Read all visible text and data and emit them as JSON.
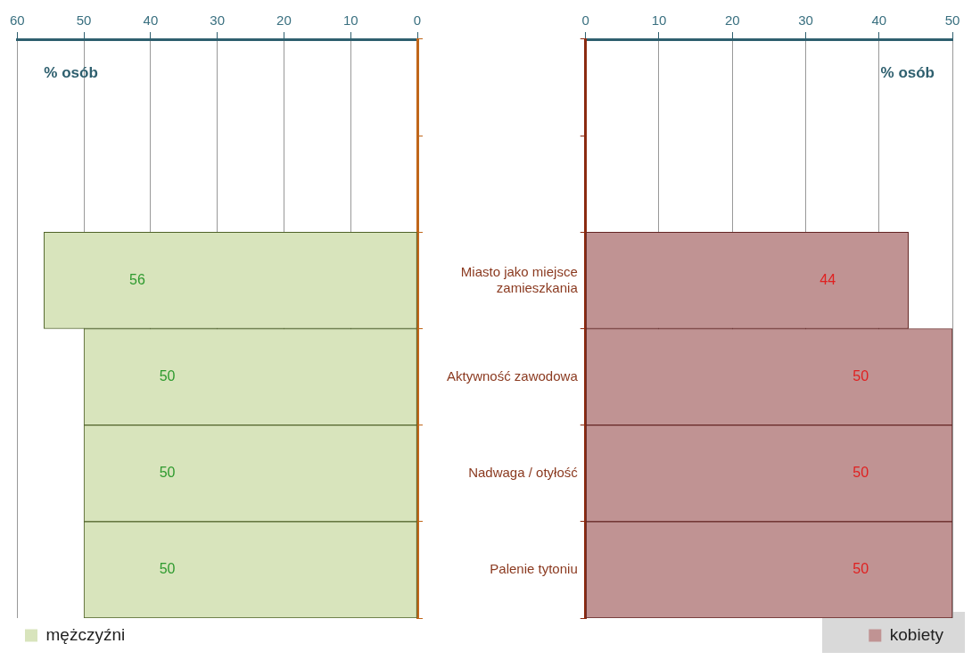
{
  "chart_data": [
    {
      "type": "bar",
      "orientation": "horizontal",
      "xlabel": "% osób",
      "categories": [
        null,
        null,
        null,
        null,
        null,
        null
      ],
      "xlim": [
        60,
        0
      ],
      "xticks": [
        60,
        50,
        40,
        30,
        20,
        10,
        0
      ],
      "grid": "x",
      "tick_labels": "x",
      "legend": "bottom left",
      "data_labels": true,
      "series": [
        {
          "name": "mężczyźni",
          "color": "#d8e4bc",
          "values": [
            null,
            null,
            56,
            50,
            50,
            50
          ]
        }
      ]
    },
    {
      "type": "bar",
      "orientation": "horizontal",
      "xlabel": "% osób",
      "categories": [
        null,
        null,
        "Miasto jako miejsce zamieszkania",
        "Aktywność zawodowa",
        "Nadwaga / otyłość",
        "Palenie tytoniu"
      ],
      "xlim": [
        0,
        50
      ],
      "xticks": [
        0,
        10,
        20,
        30,
        40,
        50
      ],
      "grid": "x",
      "legend": "bottom right",
      "data_labels": true,
      "series": [
        {
          "name": "kobiety",
          "color": "#c09393",
          "values": [
            null,
            null,
            44,
            50,
            50,
            50
          ]
        }
      ]
    }
  ]
}
